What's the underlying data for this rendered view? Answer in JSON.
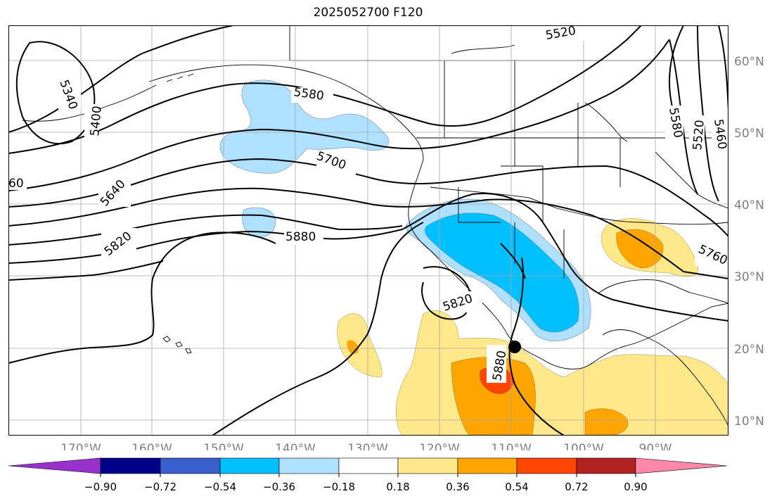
{
  "title": "2025052700 F120",
  "lat_labels": [
    "60°N",
    "50°N",
    "40°N",
    "30°N",
    "20°N",
    "10°N"
  ],
  "lon_labels": [
    "170°W",
    "160°W",
    "150°W",
    "140°W",
    "130°W",
    "120°W",
    "110°W",
    "100°W",
    "90°W"
  ],
  "contour_labels": [
    "5340",
    "5400",
    "60",
    "5640",
    "5820",
    "5520",
    "5580",
    "5700",
    "5880",
    "5820",
    "5880",
    "5580",
    "5520",
    "5460",
    "5760"
  ],
  "colorbar": {
    "ticks": [
      "−0.90",
      "−0.72",
      "−0.54",
      "−0.36",
      "−0.18",
      "0.18",
      "0.36",
      "0.54",
      "0.72",
      "0.90"
    ],
    "colors": [
      "#9932cc",
      "#00008b",
      "#3a5fcd",
      "#00bfff",
      "#b0e0ff",
      "#ffffff",
      "#ffe88a",
      "#ffa500",
      "#ff4500",
      "#b22222",
      "#ff88aa"
    ]
  },
  "marker": "storm-center"
}
